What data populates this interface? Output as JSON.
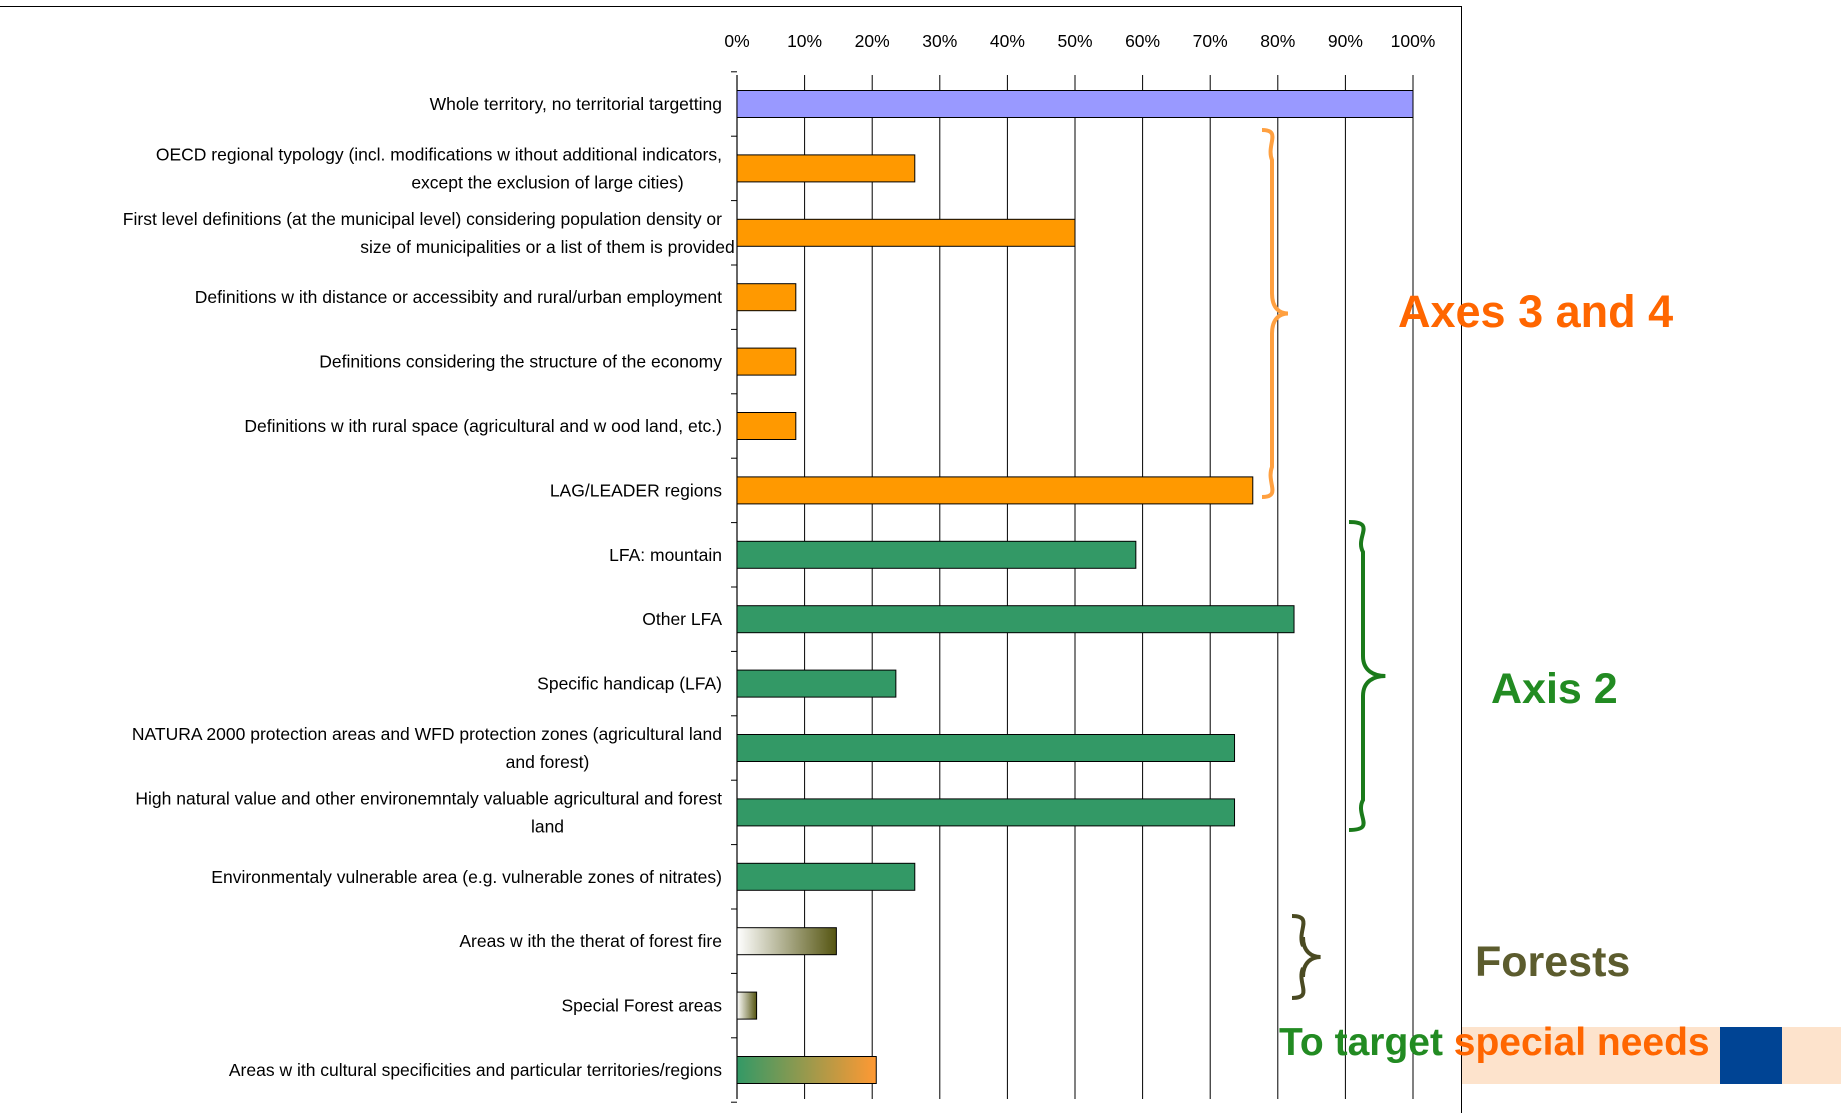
{
  "chart_data": {
    "type": "bar",
    "orientation": "horizontal",
    "title": "",
    "xlim": [
      0,
      100
    ],
    "x_ticks": [
      "0%",
      "10%",
      "20%",
      "30%",
      "40%",
      "50%",
      "60%",
      "70%",
      "80%",
      "90%",
      "100%"
    ],
    "grid": true,
    "categories": [
      [
        "Whole territory, no territorial targetting"
      ],
      [
        "OECD regional typology (incl. modifications w ithout additional indicators,",
        "except the exclusion of large cities)"
      ],
      [
        "First level definitions (at the municipal level) considering population density or",
        "size of municipalities or a list of them is provided"
      ],
      [
        "Definitions w ith distance or accessibity and rural/urban employment"
      ],
      [
        "Definitions considering the structure of the economy"
      ],
      [
        "Definitions w ith rural space (agricultural and  w ood land, etc.)"
      ],
      [
        "LAG/LEADER regions"
      ],
      [
        "LFA: mountain"
      ],
      [
        "Other LFA"
      ],
      [
        "Specific handicap (LFA)"
      ],
      [
        "NATURA 2000 protection areas  and WFD protection zones (agricultural land",
        "and forest)"
      ],
      [
        "High natural value and other environemntaly valuable agricultural and forest",
        "land"
      ],
      [
        "Environmentaly vulnerable area (e.g. vulnerable zones of nitrates)"
      ],
      [
        "Areas w ith the therat of forest fire"
      ],
      [
        "Special Forest areas"
      ],
      [
        "Areas w ith cultural specificities and particular territories/regions"
      ]
    ],
    "values": [
      100,
      26.3,
      50,
      8.7,
      8.7,
      8.7,
      76.3,
      59,
      82.4,
      23.5,
      73.6,
      73.6,
      26.3,
      14.7,
      2.9,
      20.6
    ],
    "bar_groups": [
      "whole",
      "axes34",
      "axes34",
      "axes34",
      "axes34",
      "axes34",
      "axes34",
      "axis2",
      "axis2",
      "axis2",
      "axis2",
      "axis2",
      "axis2",
      "forest",
      "forest",
      "cultural"
    ],
    "colors": {
      "whole": "#9999ff",
      "axes34": "#ff9900",
      "axis2": "#339966",
      "forest_start": "#ffffff",
      "forest_end": "#555511",
      "cultural_start": "#339966",
      "cultural_end": "#ff9933",
      "brace_axes34": "#ffa040",
      "brace_axis2": "#1a7a1a",
      "brace_forest": "#4a4a22"
    }
  },
  "annotations": {
    "axes34": "Axes 3 and 4",
    "axis2": "Axis 2",
    "forests": "Forests",
    "special_part1": "To target ",
    "special_part2": "special needs"
  }
}
